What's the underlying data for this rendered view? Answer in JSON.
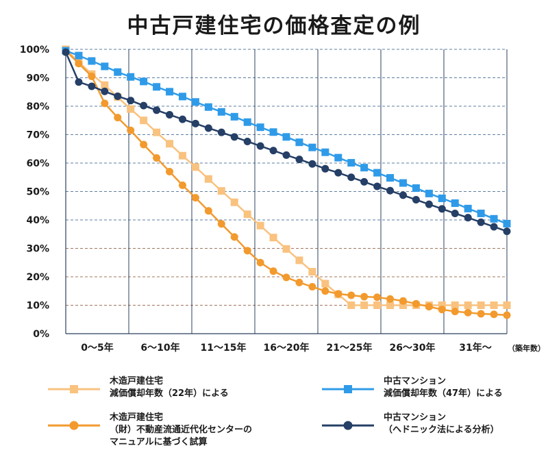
{
  "chart_data": {
    "type": "line",
    "title": "中古戸建住宅の価格査定の例",
    "categories": [
      "0～5年",
      "6～10年",
      "11～15年",
      "16～20年",
      "21～25年",
      "26～30年",
      "31年～"
    ],
    "x_unit_label": "（築年数）",
    "y_ticks": [
      "0%",
      "10%",
      "20%",
      "30%",
      "40%",
      "50%",
      "60%",
      "70%",
      "80%",
      "90%",
      "100%"
    ],
    "ylim": [
      0,
      100
    ],
    "x_age_range": [
      0,
      34
    ],
    "grid": true,
    "legend_position": "bottom",
    "series": [
      {
        "name": "木造戸建住宅\n減価償却年数（22年）による",
        "color": "#f9c27f",
        "marker": "square",
        "x": [
          0,
          1,
          2,
          3,
          4,
          5,
          6,
          7,
          8,
          9,
          10,
          11,
          12,
          13,
          14,
          15,
          16,
          17,
          18,
          19,
          20,
          21,
          22,
          23,
          24,
          25,
          26,
          27,
          28,
          29,
          30,
          31,
          32,
          33,
          34
        ],
        "values": [
          100,
          95.5,
          91.3,
          87.4,
          83.2,
          79.0,
          75.0,
          70.8,
          66.8,
          62.6,
          58.6,
          54.4,
          50.2,
          46.2,
          42.0,
          38.0,
          33.8,
          29.8,
          25.8,
          21.8,
          17.6,
          13.8,
          10.0,
          10.0,
          10.0,
          10.0,
          10.0,
          10.0,
          10.0,
          10.0,
          10.0,
          10.0,
          10.0,
          10.0,
          10.0
        ]
      },
      {
        "name": "木造戸建住宅\n（財）不動産流通近代化センターの\nマニュアルに基づく試算",
        "color": "#f29a2e",
        "marker": "circle",
        "x": [
          0,
          1,
          2,
          3,
          4,
          5,
          6,
          7,
          8,
          9,
          10,
          11,
          12,
          13,
          14,
          15,
          16,
          17,
          18,
          19,
          20,
          21,
          22,
          23,
          24,
          25,
          26,
          27,
          28,
          29,
          30,
          31,
          32,
          33,
          34
        ],
        "values": [
          99.5,
          95,
          90.5,
          81.0,
          76.0,
          71.5,
          66.5,
          61.8,
          57.0,
          52.2,
          47.8,
          43.2,
          38.6,
          34.0,
          29.2,
          25.0,
          22.0,
          19.8,
          18.0,
          16.5,
          15.0,
          14.0,
          13.5,
          13.0,
          12.8,
          12.2,
          11.5,
          10.5,
          9.5,
          8.5,
          7.8,
          7.4,
          7.0,
          6.8,
          6.5
        ]
      },
      {
        "name": "中古マンション\n減価償却年数（47年）による",
        "color": "#2f9be8",
        "marker": "square",
        "x": [
          0,
          1,
          2,
          3,
          4,
          5,
          6,
          7,
          8,
          9,
          10,
          11,
          12,
          13,
          14,
          15,
          16,
          17,
          18,
          19,
          20,
          21,
          22,
          23,
          24,
          25,
          26,
          27,
          28,
          29,
          30,
          31,
          32,
          33,
          34
        ],
        "values": [
          99.5,
          97.8,
          95.9,
          94.0,
          92.0,
          90.3,
          88.7,
          86.8,
          85.1,
          83.4,
          81.5,
          79.7,
          78.0,
          76.3,
          74.4,
          72.6,
          70.9,
          69.2,
          67.3,
          65.5,
          63.8,
          61.9,
          60.1,
          58.4,
          56.6,
          54.8,
          53.0,
          51.2,
          49.3,
          47.6,
          45.9,
          44.0,
          42.3,
          40.4,
          38.7
        ]
      },
      {
        "name": "中古マンション\n（ヘドニック法による分析）",
        "color": "#253f66",
        "marker": "circle",
        "x": [
          0,
          1,
          2,
          3,
          4,
          5,
          6,
          7,
          8,
          9,
          10,
          11,
          12,
          13,
          14,
          15,
          16,
          17,
          18,
          19,
          20,
          21,
          22,
          23,
          24,
          25,
          26,
          27,
          28,
          29,
          30,
          31,
          32,
          33,
          34
        ],
        "values": [
          99,
          88.5,
          87.0,
          85.2,
          83.5,
          82.0,
          80.2,
          78.6,
          77.0,
          75.4,
          73.9,
          72.3,
          70.8,
          69.2,
          67.6,
          66.0,
          64.4,
          62.8,
          61.3,
          59.7,
          58.0,
          56.6,
          55.0,
          53.4,
          51.8,
          50.3,
          48.7,
          47.1,
          45.5,
          43.9,
          42.3,
          40.8,
          39.2,
          37.6,
          36.0
        ]
      }
    ]
  }
}
